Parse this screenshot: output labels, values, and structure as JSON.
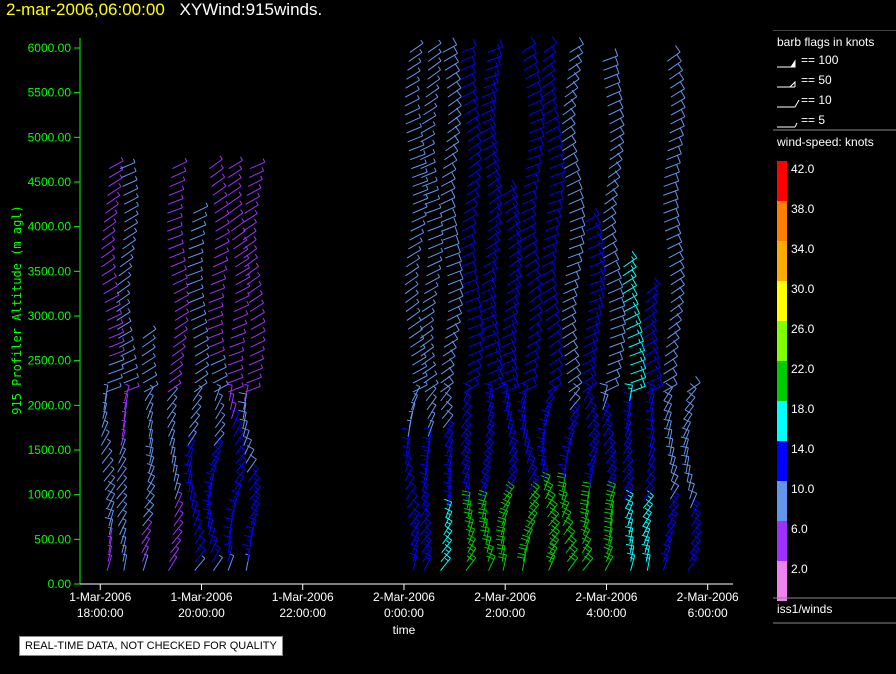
{
  "header": {
    "date_time": "2-mar-2006,06:00:00",
    "product": "XYWind:915winds."
  },
  "quality_notice": "REAL-TIME DATA, NOT CHECKED FOR QUALITY",
  "legend": {
    "barb_title": "barb flags in knots",
    "barb_items": [
      "== 100",
      "== 50",
      "== 10",
      "== 5"
    ],
    "speed_title": "wind-speed: knots",
    "speed_scale": [
      {
        "label": "42.0",
        "color": "#ff0000"
      },
      {
        "label": "38.0",
        "color": "#ff7f00"
      },
      {
        "label": "34.0",
        "color": "#ffaa00"
      },
      {
        "label": "30.0",
        "color": "#ffff00"
      },
      {
        "label": "26.0",
        "color": "#7fff00"
      },
      {
        "label": "22.0",
        "color": "#00cc00"
      },
      {
        "label": "18.0",
        "color": "#00ffff"
      },
      {
        "label": "14.0",
        "color": "#0000ff"
      },
      {
        "label": "10.0",
        "color": "#6495ed"
      },
      {
        "label": "6.0",
        "color": "#9b30ff"
      },
      {
        "label": "2.0",
        "color": "#ee82ee"
      }
    ],
    "source": "iss1/winds"
  },
  "chart_data": {
    "type": "scatter",
    "subtype": "wind-barb time-height",
    "title": "2-mar-2006,06:00:00 XYWind:915winds.",
    "xlabel": "time",
    "ylabel": "915 Profiler Altitude (m agl)",
    "ylim": [
      0,
      6000
    ],
    "y_ticks": [
      "0.00",
      "500.00",
      "1000.00",
      "1500.00",
      "2000.00",
      "2500.00",
      "3000.00",
      "3500.00",
      "4000.00",
      "4500.00",
      "5000.00",
      "5500.00",
      "6000.00"
    ],
    "x_tick_values": [
      18,
      20,
      22,
      24,
      26,
      28,
      30
    ],
    "x_ticks": [
      {
        "date": "1-Mar-2006",
        "time": "18:00:00"
      },
      {
        "date": "1-Mar-2006",
        "time": "20:00:00"
      },
      {
        "date": "1-Mar-2006",
        "time": "22:00:00"
      },
      {
        "date": "2-Mar-2006",
        "time": "0:00:00"
      },
      {
        "date": "2-Mar-2006",
        "time": "2:00:00"
      },
      {
        "date": "2-Mar-2006",
        "time": "4:00:00"
      },
      {
        "date": "2-Mar-2006",
        "time": "6:00:00"
      }
    ],
    "xlim": [
      17.6,
      30.5
    ],
    "grid": false,
    "series": [
      {
        "time": 18.1,
        "top": 4700,
        "bands": [
          [
            0,
            500,
            4
          ],
          [
            500,
            1000,
            10
          ],
          [
            1000,
            2500,
            8
          ],
          [
            2500,
            4700,
            7
          ]
        ]
      },
      {
        "time": 18.4,
        "top": 4700,
        "bands": [
          [
            200,
            1500,
            9
          ],
          [
            1500,
            2200,
            7
          ],
          [
            2200,
            4700,
            9
          ]
        ]
      },
      {
        "time": 18.9,
        "top": 2800,
        "bands": [
          [
            200,
            600,
            5
          ],
          [
            600,
            1400,
            10
          ],
          [
            1400,
            2800,
            8
          ]
        ]
      },
      {
        "time": 19.4,
        "top": 4700,
        "bands": [
          [
            0,
            900,
            5
          ],
          [
            900,
            2100,
            8
          ],
          [
            2100,
            4700,
            7
          ]
        ]
      },
      {
        "time": 19.8,
        "top": 4200,
        "bands": [
          [
            200,
            1500,
            12
          ],
          [
            1500,
            4200,
            8
          ]
        ]
      },
      {
        "time": 20.2,
        "top": 4700,
        "bands": [
          [
            200,
            1500,
            13
          ],
          [
            1500,
            2500,
            8
          ],
          [
            2500,
            4700,
            7
          ]
        ]
      },
      {
        "time": 20.6,
        "top": 4700,
        "bands": [
          [
            200,
            1800,
            12
          ],
          [
            1800,
            4700,
            7
          ]
        ]
      },
      {
        "time": 20.9,
        "top": 4700,
        "bands": [
          [
            200,
            1200,
            13
          ],
          [
            1200,
            2000,
            10
          ],
          [
            2000,
            4700,
            7
          ]
        ]
      },
      {
        "time": 24.1,
        "top": 6000,
        "bands": [
          [
            100,
            700,
            13
          ],
          [
            700,
            1600,
            12
          ],
          [
            1600,
            6000,
            8
          ]
        ]
      },
      {
        "time": 24.4,
        "top": 6000,
        "bands": [
          [
            100,
            700,
            15
          ],
          [
            700,
            1600,
            13
          ],
          [
            1600,
            6000,
            9
          ]
        ]
      },
      {
        "time": 24.8,
        "top": 6000,
        "bands": [
          [
            100,
            800,
            16
          ],
          [
            800,
            1700,
            13
          ],
          [
            1700,
            6000,
            10
          ]
        ]
      },
      {
        "time": 25.2,
        "top": 6000,
        "bands": [
          [
            100,
            900,
            20
          ],
          [
            900,
            1700,
            14
          ],
          [
            1700,
            6000,
            12
          ]
        ]
      },
      {
        "time": 25.6,
        "top": 6000,
        "bands": [
          [
            100,
            900,
            20
          ],
          [
            900,
            1800,
            14
          ],
          [
            1800,
            6000,
            13
          ]
        ]
      },
      {
        "time": 26.0,
        "top": 4400,
        "bands": [
          [
            100,
            1000,
            22
          ],
          [
            1000,
            1800,
            15
          ],
          [
            1800,
            4400,
            13
          ]
        ]
      },
      {
        "time": 26.4,
        "top": 6000,
        "bands": [
          [
            100,
            1000,
            21
          ],
          [
            1000,
            1800,
            14
          ],
          [
            1800,
            6000,
            12
          ]
        ]
      },
      {
        "time": 26.8,
        "top": 6000,
        "bands": [
          [
            100,
            1100,
            23
          ],
          [
            1100,
            1900,
            15
          ],
          [
            1900,
            6000,
            12
          ]
        ]
      },
      {
        "time": 27.2,
        "top": 6000,
        "bands": [
          [
            100,
            1100,
            22
          ],
          [
            1100,
            1900,
            14
          ],
          [
            1900,
            6000,
            10
          ]
        ]
      },
      {
        "time": 27.6,
        "top": 4100,
        "bands": [
          [
            100,
            1000,
            20
          ],
          [
            1000,
            1900,
            14
          ],
          [
            1900,
            4100,
            13
          ]
        ]
      },
      {
        "time": 28.0,
        "top": 5900,
        "bands": [
          [
            100,
            1000,
            20
          ],
          [
            1000,
            1900,
            14
          ],
          [
            1900,
            5900,
            11
          ]
        ]
      },
      {
        "time": 28.4,
        "top": 3600,
        "bands": [
          [
            100,
            900,
            17
          ],
          [
            900,
            2000,
            13
          ],
          [
            2000,
            3600,
            19
          ]
        ]
      },
      {
        "time": 28.8,
        "top": 3300,
        "bands": [
          [
            100,
            900,
            16
          ],
          [
            900,
            2000,
            12
          ],
          [
            2000,
            3300,
            15
          ]
        ]
      },
      {
        "time": 29.2,
        "top": 5900,
        "bands": [
          [
            100,
            900,
            15
          ],
          [
            900,
            2000,
            11
          ],
          [
            2000,
            5900,
            10
          ]
        ]
      },
      {
        "time": 29.6,
        "top": 2200,
        "bands": [
          [
            100,
            800,
            14
          ],
          [
            800,
            2200,
            11
          ]
        ]
      }
    ]
  }
}
